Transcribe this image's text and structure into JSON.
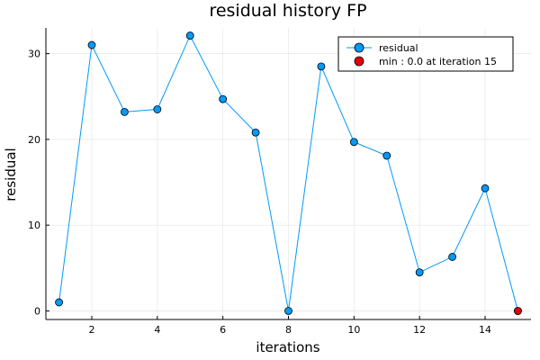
{
  "chart_data": {
    "type": "line",
    "title": "residual history FP",
    "xlabel": "iterations",
    "ylabel": "residual",
    "xlim": [
      0.6,
      15.4
    ],
    "ylim": [
      -1,
      33
    ],
    "xticks": [
      2,
      4,
      6,
      8,
      10,
      12,
      14
    ],
    "yticks": [
      0,
      10,
      20,
      30
    ],
    "grid": true,
    "legend_position": "top-right",
    "series": [
      {
        "name": "residual",
        "color": "#009af9",
        "x": [
          1,
          2,
          3,
          4,
          5,
          6,
          7,
          8,
          9,
          10,
          11,
          12,
          13,
          14,
          15
        ],
        "y": [
          1.0,
          31.0,
          23.2,
          23.5,
          32.1,
          24.7,
          20.8,
          0.0,
          28.5,
          19.7,
          18.1,
          4.5,
          6.3,
          14.3,
          0.0
        ]
      },
      {
        "name": "min : 0.0 at iteration 15",
        "color": "#e26f46",
        "marker_color": "#e0000b",
        "x": [
          15
        ],
        "y": [
          0.0
        ]
      }
    ]
  }
}
